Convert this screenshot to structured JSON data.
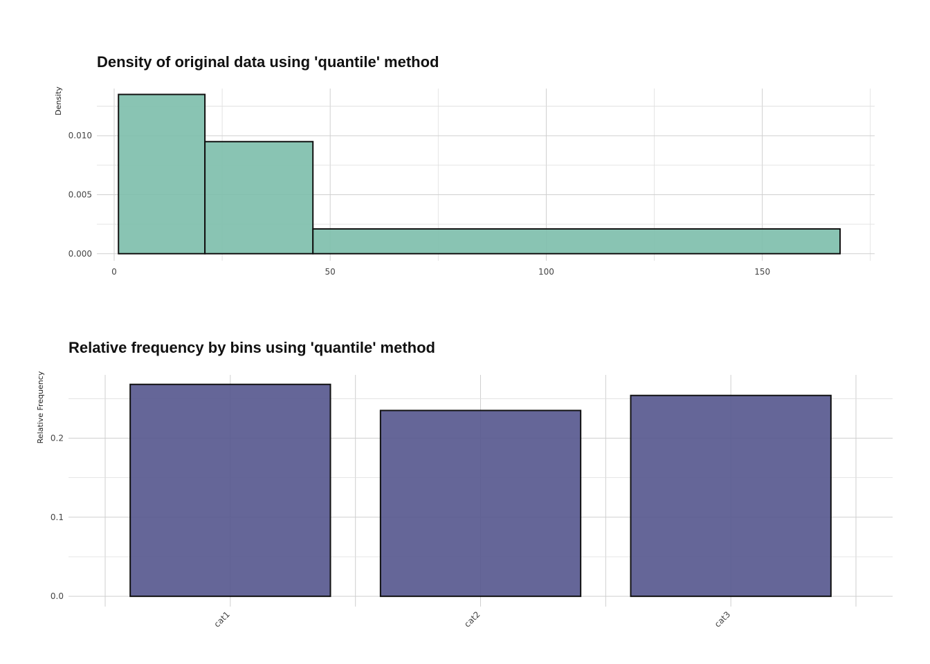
{
  "chart_data": [
    {
      "type": "bar",
      "subtype": "histogram",
      "title": "Density of original data using 'quantile' method",
      "xlabel": "",
      "ylabel": "Density",
      "xlim": [
        -4,
        176
      ],
      "ylim": [
        -0.0006,
        0.014
      ],
      "x_ticks": [
        "0",
        "50",
        "100",
        "150"
      ],
      "x_tick_values": [
        0,
        50,
        100,
        150
      ],
      "y_ticks": [
        "0.000",
        "0.005",
        "0.010"
      ],
      "y_tick_values": [
        0,
        0.005,
        0.01
      ],
      "bins": [
        {
          "x_start": 1,
          "x_end": 21,
          "value": 0.0135
        },
        {
          "x_start": 21,
          "x_end": 46,
          "value": 0.0095
        },
        {
          "x_start": 46,
          "x_end": 168,
          "value": 0.0021
        }
      ],
      "fill": "#7fbfad",
      "grid": true,
      "legend": "none"
    },
    {
      "type": "bar",
      "title": "Relative frequency by bins using 'quantile' method",
      "xlabel": "",
      "ylabel": "Relative Frequency",
      "categories": [
        "cat1",
        "cat2",
        "cat3"
      ],
      "values": [
        0.268,
        0.235,
        0.254
      ],
      "ylim": [
        -0.013,
        0.28
      ],
      "y_ticks": [
        "0.0",
        "0.1",
        "0.2"
      ],
      "y_tick_values": [
        0,
        0.1,
        0.2
      ],
      "fill": "#58598f",
      "grid": true,
      "legend": "none"
    }
  ]
}
